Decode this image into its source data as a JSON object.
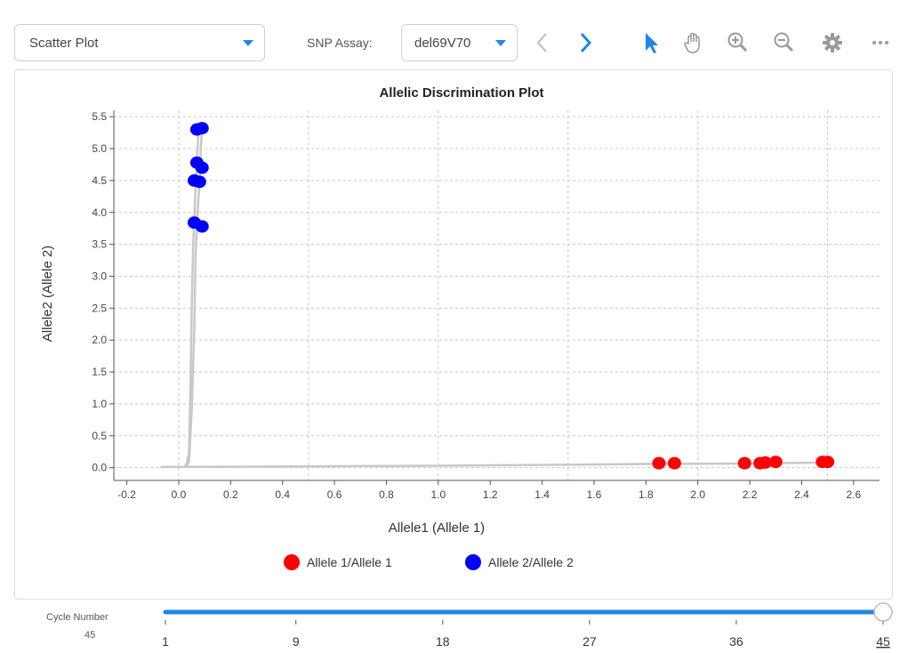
{
  "toolbar": {
    "plot_type": "Scatter Plot",
    "snp_assay_label": "SNP Assay:",
    "snp_assay_value": "del69V70",
    "icons": [
      "chevron-left-icon",
      "chevron-right-icon",
      "select-pointer-icon",
      "pan-hand-icon",
      "zoom-in-icon",
      "zoom-out-icon",
      "gear-icon",
      "more-icon"
    ]
  },
  "colors": {
    "accent": "#1e88e5",
    "allele1": "#ff0000",
    "allele2": "#0000ff",
    "trace": "#c8c8c8"
  },
  "chart_data": {
    "type": "scatter",
    "title": "Allelic Discrimination Plot",
    "xlabel": "Allele1 (Allele 1)",
    "ylabel": "Allele2 (Allele 2)",
    "xlim": [
      -0.25,
      2.7
    ],
    "ylim": [
      -0.2,
      5.6
    ],
    "xticks": [
      -0.2,
      0.0,
      0.2,
      0.4,
      0.6,
      0.8,
      1.0,
      1.2,
      1.4,
      1.6,
      1.8,
      2.0,
      2.2,
      2.4,
      2.6
    ],
    "xtick_labels": [
      "-0.2",
      "0.0",
      "0.2",
      "0.4",
      "0.6",
      "0.8",
      "1.0",
      "1.2",
      "1.4",
      "1.6",
      "1.8",
      "2.0",
      "2.2",
      "2.4",
      "2.6"
    ],
    "yticks": [
      0.0,
      0.5,
      1.0,
      1.5,
      2.0,
      2.5,
      3.0,
      3.5,
      4.0,
      4.5,
      5.0,
      5.5
    ],
    "ytick_labels": [
      "0.0",
      "0.5",
      "1.0",
      "1.5",
      "2.0",
      "2.5",
      "3.0",
      "3.5",
      "4.0",
      "4.5",
      "5.0",
      "5.5"
    ],
    "x_gridlines": [
      0.0,
      0.5,
      1.0,
      1.5,
      2.0,
      2.5
    ],
    "y_gridlines": [
      0.0,
      0.5,
      1.0,
      1.5,
      2.0,
      2.5,
      3.0,
      3.5,
      4.0,
      4.5,
      5.0,
      5.5
    ],
    "grid": true,
    "legend_position": "bottom-center",
    "series": [
      {
        "name": "Allele 1/Allele 1",
        "color": "#ff0000",
        "points": [
          [
            1.85,
            0.07
          ],
          [
            1.91,
            0.07
          ],
          [
            2.18,
            0.07
          ],
          [
            2.24,
            0.07
          ],
          [
            2.26,
            0.08
          ],
          [
            2.3,
            0.09
          ],
          [
            2.48,
            0.09
          ],
          [
            2.5,
            0.09
          ]
        ]
      },
      {
        "name": "Allele 2/Allele 2",
        "color": "#0000ff",
        "points": [
          [
            0.07,
            5.3
          ],
          [
            0.09,
            5.32
          ],
          [
            0.07,
            4.78
          ],
          [
            0.09,
            4.7
          ],
          [
            0.06,
            4.5
          ],
          [
            0.08,
            4.48
          ],
          [
            0.06,
            3.84
          ],
          [
            0.09,
            3.78
          ]
        ]
      }
    ],
    "traces": [
      [
        [
          -0.07,
          0.01
        ],
        [
          0.5,
          0.02
        ],
        [
          1.0,
          0.03
        ],
        [
          1.5,
          0.045
        ],
        [
          1.85,
          0.06
        ],
        [
          2.2,
          0.065
        ],
        [
          2.5,
          0.08
        ]
      ],
      [
        [
          0.02,
          0.01
        ],
        [
          0.03,
          0.05
        ],
        [
          0.04,
          0.25
        ],
        [
          0.045,
          1.2
        ],
        [
          0.05,
          2.5
        ],
        [
          0.055,
          3.4
        ],
        [
          0.06,
          3.9
        ],
        [
          0.065,
          4.4
        ],
        [
          0.07,
          4.8
        ],
        [
          0.075,
          5.2
        ],
        [
          0.08,
          5.3
        ]
      ],
      [
        [
          0.03,
          0.01
        ],
        [
          0.04,
          0.1
        ],
        [
          0.05,
          0.9
        ],
        [
          0.06,
          2.2
        ],
        [
          0.065,
          3.3
        ],
        [
          0.07,
          3.8
        ],
        [
          0.08,
          4.5
        ],
        [
          0.085,
          5.0
        ],
        [
          0.09,
          5.32
        ]
      ]
    ]
  },
  "slider": {
    "label": "Cycle Number",
    "current": "45",
    "value": 45,
    "min": 1,
    "max": 45,
    "tick_labels": [
      "1",
      "9",
      "18",
      "27",
      "36",
      "45"
    ],
    "tick_values": [
      1,
      9,
      18,
      27,
      36,
      45
    ]
  }
}
